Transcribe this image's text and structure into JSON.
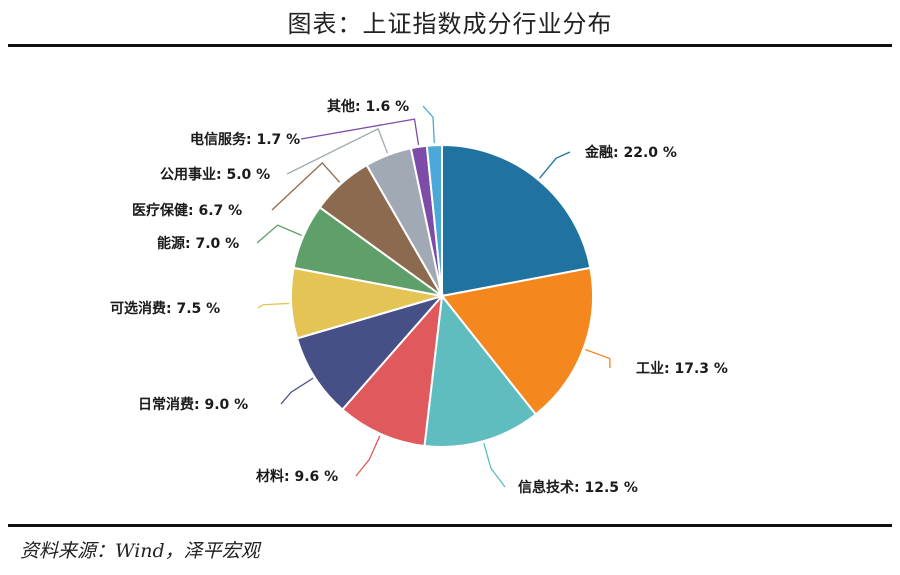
{
  "header": {
    "title": "图表：上证指数成分行业分布"
  },
  "footer": {
    "source": "资料来源：Wind，泽平宏观"
  },
  "chart_data": {
    "type": "pie",
    "title": "图表：上证指数成分行业分布",
    "unit": "%",
    "start_angle": "12 o'clock",
    "direction": "clockwise",
    "slices": [
      {
        "label": "金融",
        "value": 22.0,
        "display": "22.0 %",
        "color": "#2072a0"
      },
      {
        "label": "工业",
        "value": 17.3,
        "display": "17.3 %",
        "color": "#f5871f"
      },
      {
        "label": "信息技术",
        "value": 12.5,
        "display": "12.5 %",
        "color": "#5fbdbf"
      },
      {
        "label": "材料",
        "value": 9.6,
        "display": "9.6 %",
        "color": "#e0595c"
      },
      {
        "label": "日常消费",
        "value": 9.0,
        "display": "9.0 %",
        "color": "#474f87"
      },
      {
        "label": "可选消费",
        "value": 7.5,
        "display": "7.5 %",
        "color": "#e3c454"
      },
      {
        "label": "能源",
        "value": 7.0,
        "display": "7.0 %",
        "color": "#5f9f6a"
      },
      {
        "label": "医疗保健",
        "value": 6.7,
        "display": "6.7 %",
        "color": "#8c6a4f"
      },
      {
        "label": "公用事业",
        "value": 5.0,
        "display": "5.0 %",
        "color": "#a1aab4"
      },
      {
        "label": "电信服务",
        "value": 1.7,
        "display": "1.7 %",
        "color": "#7d4ba8"
      },
      {
        "label": "其他",
        "value": 1.6,
        "display": "1.6 %",
        "color": "#4aa9d9"
      }
    ]
  }
}
